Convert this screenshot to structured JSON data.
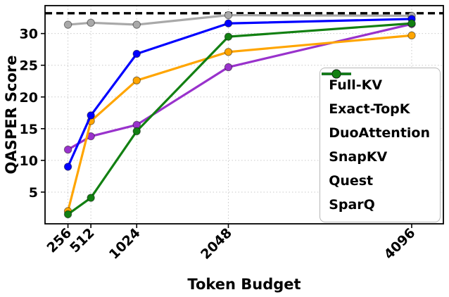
{
  "chart_data": {
    "type": "line",
    "title": "",
    "xlabel": "Token Budget",
    "ylabel": "QASPER Score",
    "x": [
      256,
      512,
      1024,
      2048,
      4096
    ],
    "x_scale": "linear",
    "xlim": [
      0,
      4450
    ],
    "ylim": [
      0,
      34.4
    ],
    "yticks": [
      5,
      10,
      15,
      20,
      25,
      30
    ],
    "grid": true,
    "grid_color": "#c9c9c9",
    "reference_line": {
      "name": "Full-KV",
      "value": 33.2,
      "color": "#000000",
      "style": "dashed"
    },
    "series": [
      {
        "name": "Exact-TopK",
        "color": "#a9a9a9",
        "values": [
          31.4,
          31.7,
          31.4,
          32.9,
          32.8
        ]
      },
      {
        "name": "DuoAttention",
        "color": "#9932cc",
        "values": [
          11.7,
          13.8,
          15.6,
          24.7,
          31.5
        ]
      },
      {
        "name": "SnapKV",
        "color": "#ffa500",
        "values": [
          2.0,
          16.2,
          22.6,
          27.1,
          29.7
        ]
      },
      {
        "name": "Quest",
        "color": "#0000ff",
        "values": [
          9.0,
          17.1,
          26.8,
          31.6,
          32.3
        ]
      },
      {
        "name": "SparQ",
        "color": "#128012",
        "values": [
          1.5,
          4.1,
          14.6,
          29.5,
          31.6
        ]
      }
    ],
    "legend": [
      "Full-KV",
      "Exact-TopK",
      "DuoAttention",
      "SnapKV",
      "Quest",
      "SparQ"
    ],
    "legend_position": "center right"
  }
}
